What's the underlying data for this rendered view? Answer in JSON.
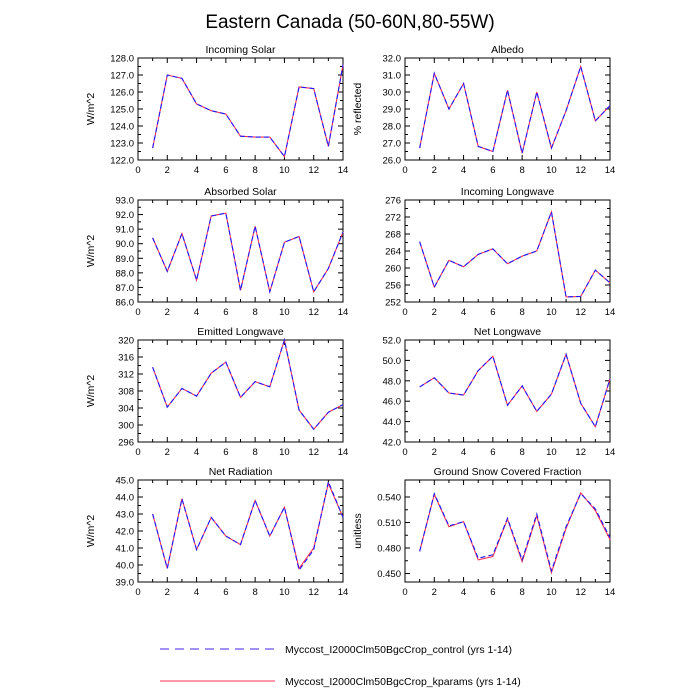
{
  "page_title": "Eastern Canada (50-60N,80-55W)",
  "legend": [
    {
      "label": "Myccost_I2000Clm50BgcCrop_control (yrs 1-14)",
      "color": "#1a1aff",
      "dash": true
    },
    {
      "label": "Myccost_I2000Clm50BgcCrop_kparams (yrs 1-14)",
      "color": "#ff3355",
      "dash": false
    }
  ],
  "chart_data": [
    {
      "type": "line",
      "title": "Incoming Solar",
      "ylabel": "W/m^2",
      "x": [
        1,
        2,
        3,
        4,
        5,
        6,
        7,
        8,
        9,
        10,
        11,
        12,
        13,
        14
      ],
      "xlim": [
        0,
        14
      ],
      "xticks": [
        "0",
        "2",
        "4",
        "6",
        "8",
        "10",
        "12",
        "14"
      ],
      "ylim": [
        122,
        128
      ],
      "yticks": [
        "122.0",
        "123.0",
        "124.0",
        "125.0",
        "126.0",
        "127.0",
        "128.0"
      ],
      "series": [
        {
          "name": "Myccost_I2000Clm50BgcCrop_control (yrs 1-14)",
          "values": [
            122.7,
            127.0,
            126.8,
            125.3,
            124.9,
            124.7,
            123.4,
            123.35,
            123.35,
            122.2,
            126.3,
            126.2,
            122.8,
            127.6
          ]
        },
        {
          "name": "Myccost_I2000Clm50BgcCrop_kparams (yrs 1-14)",
          "values": [
            122.7,
            127.0,
            126.8,
            125.3,
            124.9,
            124.7,
            123.4,
            123.35,
            123.35,
            122.2,
            126.3,
            126.2,
            122.8,
            127.6
          ]
        }
      ]
    },
    {
      "type": "line",
      "title": "Albedo",
      "ylabel": "% reflected",
      "x": [
        1,
        2,
        3,
        4,
        5,
        6,
        7,
        8,
        9,
        10,
        11,
        12,
        13,
        14
      ],
      "xlim": [
        0,
        14
      ],
      "xticks": [
        "0",
        "2",
        "4",
        "6",
        "8",
        "10",
        "12",
        "14"
      ],
      "ylim": [
        26,
        32
      ],
      "yticks": [
        "26.0",
        "27.0",
        "28.0",
        "29.0",
        "30.0",
        "31.0",
        "32.0"
      ],
      "series": [
        {
          "name": "Myccost_I2000Clm50BgcCrop_control (yrs 1-14)",
          "values": [
            26.7,
            31.1,
            29.0,
            30.5,
            26.8,
            26.5,
            30.1,
            26.4,
            30.0,
            26.7,
            28.9,
            31.5,
            28.3,
            29.2
          ]
        },
        {
          "name": "Myccost_I2000Clm50BgcCrop_kparams (yrs 1-14)",
          "values": [
            26.7,
            31.1,
            29.0,
            30.5,
            26.8,
            26.5,
            30.1,
            26.4,
            30.0,
            26.7,
            28.9,
            31.5,
            28.3,
            29.2
          ]
        }
      ]
    },
    {
      "type": "line",
      "title": "Absorbed Solar",
      "ylabel": "W/m^2",
      "x": [
        1,
        2,
        3,
        4,
        5,
        6,
        7,
        8,
        9,
        10,
        11,
        12,
        13,
        14
      ],
      "xlim": [
        0,
        14
      ],
      "xticks": [
        "0",
        "2",
        "4",
        "6",
        "8",
        "10",
        "12",
        "14"
      ],
      "ylim": [
        86,
        93
      ],
      "yticks": [
        "86.0",
        "87.0",
        "88.0",
        "89.0",
        "90.0",
        "91.0",
        "92.0",
        "93.0"
      ],
      "series": [
        {
          "name": "Myccost_I2000Clm50BgcCrop_control (yrs 1-14)",
          "values": [
            90.4,
            88.1,
            90.7,
            87.5,
            91.9,
            92.1,
            86.8,
            91.2,
            86.7,
            90.1,
            90.5,
            86.7,
            88.3,
            90.8
          ]
        },
        {
          "name": "Myccost_I2000Clm50BgcCrop_kparams (yrs 1-14)",
          "values": [
            90.4,
            88.1,
            90.7,
            87.5,
            91.9,
            92.1,
            86.8,
            91.2,
            86.7,
            90.1,
            90.5,
            86.7,
            88.3,
            90.8
          ]
        }
      ]
    },
    {
      "type": "line",
      "title": "Incoming Longwave",
      "ylabel": "",
      "x": [
        1,
        2,
        3,
        4,
        5,
        6,
        7,
        8,
        9,
        10,
        11,
        12,
        13,
        14
      ],
      "xlim": [
        0,
        14
      ],
      "xticks": [
        "0",
        "2",
        "4",
        "6",
        "8",
        "10",
        "12",
        "14"
      ],
      "ylim": [
        252,
        276
      ],
      "yticks": [
        "252",
        "256",
        "260",
        "264",
        "268",
        "272",
        "276"
      ],
      "series": [
        {
          "name": "Myccost_I2000Clm50BgcCrop_control (yrs 1-14)",
          "values": [
            266.2,
            255.5,
            261.8,
            260.3,
            263.2,
            264.5,
            261.0,
            262.8,
            264.0,
            273.2,
            253.2,
            253.3,
            259.5,
            256.5
          ]
        },
        {
          "name": "Myccost_I2000Clm50BgcCrop_kparams (yrs 1-14)",
          "values": [
            266.2,
            255.5,
            261.8,
            260.3,
            263.2,
            264.5,
            261.0,
            262.8,
            264.0,
            273.2,
            253.2,
            253.3,
            259.5,
            256.5
          ]
        }
      ]
    },
    {
      "type": "line",
      "title": "Emitted Longwave",
      "ylabel": "W/m^2",
      "x": [
        1,
        2,
        3,
        4,
        5,
        6,
        7,
        8,
        9,
        10,
        11,
        12,
        13,
        14
      ],
      "xlim": [
        0,
        14
      ],
      "xticks": [
        "0",
        "2",
        "4",
        "6",
        "8",
        "10",
        "12",
        "14"
      ],
      "ylim": [
        296,
        320
      ],
      "yticks": [
        "296",
        "300",
        "304",
        "308",
        "312",
        "316",
        "320"
      ],
      "series": [
        {
          "name": "Myccost_I2000Clm50BgcCrop_control (yrs 1-14)",
          "values": [
            313.6,
            304.2,
            308.6,
            306.8,
            312.2,
            314.8,
            306.5,
            310.2,
            309.0,
            320.0,
            303.5,
            299.0,
            303.0,
            304.8
          ]
        },
        {
          "name": "Myccost_I2000Clm50BgcCrop_kparams (yrs 1-14)",
          "values": [
            313.6,
            304.2,
            308.6,
            306.8,
            312.2,
            314.8,
            306.5,
            310.2,
            309.0,
            320.0,
            303.5,
            299.0,
            303.0,
            304.8
          ]
        }
      ]
    },
    {
      "type": "line",
      "title": "Net Longwave",
      "ylabel": "",
      "x": [
        1,
        2,
        3,
        4,
        5,
        6,
        7,
        8,
        9,
        10,
        11,
        12,
        13,
        14
      ],
      "xlim": [
        0,
        14
      ],
      "xticks": [
        "0",
        "2",
        "4",
        "6",
        "8",
        "10",
        "12",
        "14"
      ],
      "ylim": [
        42,
        52
      ],
      "yticks": [
        "42.0",
        "44.0",
        "46.0",
        "48.0",
        "50.0",
        "52.0"
      ],
      "series": [
        {
          "name": "Myccost_I2000Clm50BgcCrop_control (yrs 1-14)",
          "values": [
            47.4,
            48.3,
            46.8,
            46.6,
            49.0,
            50.4,
            45.6,
            47.5,
            45.0,
            46.7,
            50.6,
            45.8,
            43.5,
            48.2
          ]
        },
        {
          "name": "Myccost_I2000Clm50BgcCrop_kparams (yrs 1-14)",
          "values": [
            47.4,
            48.3,
            46.8,
            46.6,
            49.0,
            50.4,
            45.6,
            47.5,
            45.0,
            46.7,
            50.6,
            45.8,
            43.5,
            48.2
          ]
        }
      ]
    },
    {
      "type": "line",
      "title": "Net Radiation",
      "ylabel": "W/m^2",
      "x": [
        1,
        2,
        3,
        4,
        5,
        6,
        7,
        8,
        9,
        10,
        11,
        12,
        13,
        14
      ],
      "xlim": [
        0,
        14
      ],
      "xticks": [
        "0",
        "2",
        "4",
        "6",
        "8",
        "10",
        "12",
        "14"
      ],
      "ylim": [
        39,
        45
      ],
      "yticks": [
        "39.0",
        "40.0",
        "41.0",
        "42.0",
        "43.0",
        "44.0",
        "45.0"
      ],
      "series": [
        {
          "name": "Myccost_I2000Clm50BgcCrop_control (yrs 1-14)",
          "values": [
            43.0,
            39.8,
            43.9,
            40.9,
            42.8,
            41.7,
            41.2,
            43.8,
            41.7,
            43.4,
            39.7,
            40.9,
            44.9,
            42.8
          ]
        },
        {
          "name": "Myccost_I2000Clm50BgcCrop_kparams (yrs 1-14)",
          "values": [
            43.0,
            39.8,
            43.9,
            40.9,
            42.8,
            41.7,
            41.2,
            43.8,
            41.7,
            43.4,
            39.8,
            41.0,
            44.8,
            42.8
          ]
        }
      ]
    },
    {
      "type": "line",
      "title": "Ground Snow Covered Fraction",
      "ylabel": "unitless",
      "x": [
        1,
        2,
        3,
        4,
        5,
        6,
        7,
        8,
        9,
        10,
        11,
        12,
        13,
        14
      ],
      "xlim": [
        0,
        14
      ],
      "xticks": [
        "0",
        "2",
        "4",
        "6",
        "8",
        "10",
        "12",
        "14"
      ],
      "ylim": [
        0.44,
        0.56
      ],
      "yticks": [
        "0.450",
        "0.480",
        "0.510",
        "0.540"
      ],
      "ytick_values": [
        0.45,
        0.48,
        0.51,
        0.54
      ],
      "series": [
        {
          "name": "Myccost_I2000Clm50BgcCrop_control (yrs 1-14)",
          "values": [
            0.476,
            0.544,
            0.506,
            0.511,
            0.468,
            0.472,
            0.515,
            0.466,
            0.52,
            0.453,
            0.505,
            0.544,
            0.526,
            0.492
          ]
        },
        {
          "name": "Myccost_I2000Clm50BgcCrop_kparams (yrs 1-14)",
          "values": [
            0.476,
            0.543,
            0.505,
            0.511,
            0.466,
            0.47,
            0.514,
            0.464,
            0.518,
            0.451,
            0.503,
            0.545,
            0.524,
            0.49
          ]
        }
      ]
    }
  ]
}
